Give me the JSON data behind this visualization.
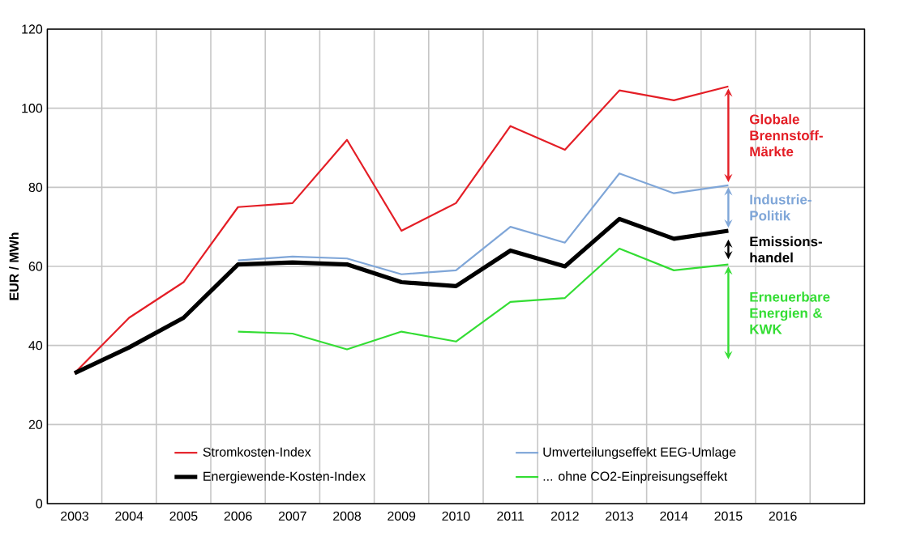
{
  "chart_data": {
    "type": "line",
    "ylabel": "EUR / MWh",
    "categories": [
      "2003",
      "2004",
      "2005",
      "2006",
      "2007",
      "2008",
      "2009",
      "2010",
      "2011",
      "2012",
      "2013",
      "2014",
      "2015",
      "2016",
      null
    ],
    "series": [
      {
        "name": "Stromkosten-Index",
        "color": "#e41e26",
        "values": [
          33,
          47,
          56,
          75,
          76,
          92,
          69,
          76,
          95.5,
          89.5,
          104.5,
          102,
          105.5,
          null,
          null
        ]
      },
      {
        "name": "Umverteilungseffekt EEG-Umlage",
        "color": "#7fa6d8",
        "values": [
          null,
          null,
          null,
          61.5,
          62.5,
          62,
          58,
          59,
          70,
          66,
          83.5,
          78.5,
          80.5,
          null,
          null
        ]
      },
      {
        "name": "Energiewende-Kosten-Index",
        "color": "#000000",
        "values": [
          33,
          39.5,
          47,
          60.5,
          61,
          60.5,
          56,
          55,
          64,
          60,
          72,
          67,
          69,
          null,
          null
        ]
      },
      {
        "name": "... ohne CO2-Einpreisungseffekt",
        "color": "#33dd33",
        "values": [
          null,
          null,
          null,
          43.5,
          43,
          39,
          43.5,
          41,
          51,
          52,
          64.5,
          59,
          60.5,
          null,
          null
        ]
      }
    ],
    "annotations": [
      "Globale Brennstoff-Märkte",
      "Industrie-Politik",
      "Emissions-handel",
      "Erneuerbare Energien & KWK"
    ],
    "ylim": [
      0,
      120
    ],
    "yticks": [
      0,
      20,
      40,
      60,
      80,
      100,
      120
    ],
    "grid": true,
    "legend": "bottom",
    "marker": "none",
    "line_style": "solid"
  }
}
